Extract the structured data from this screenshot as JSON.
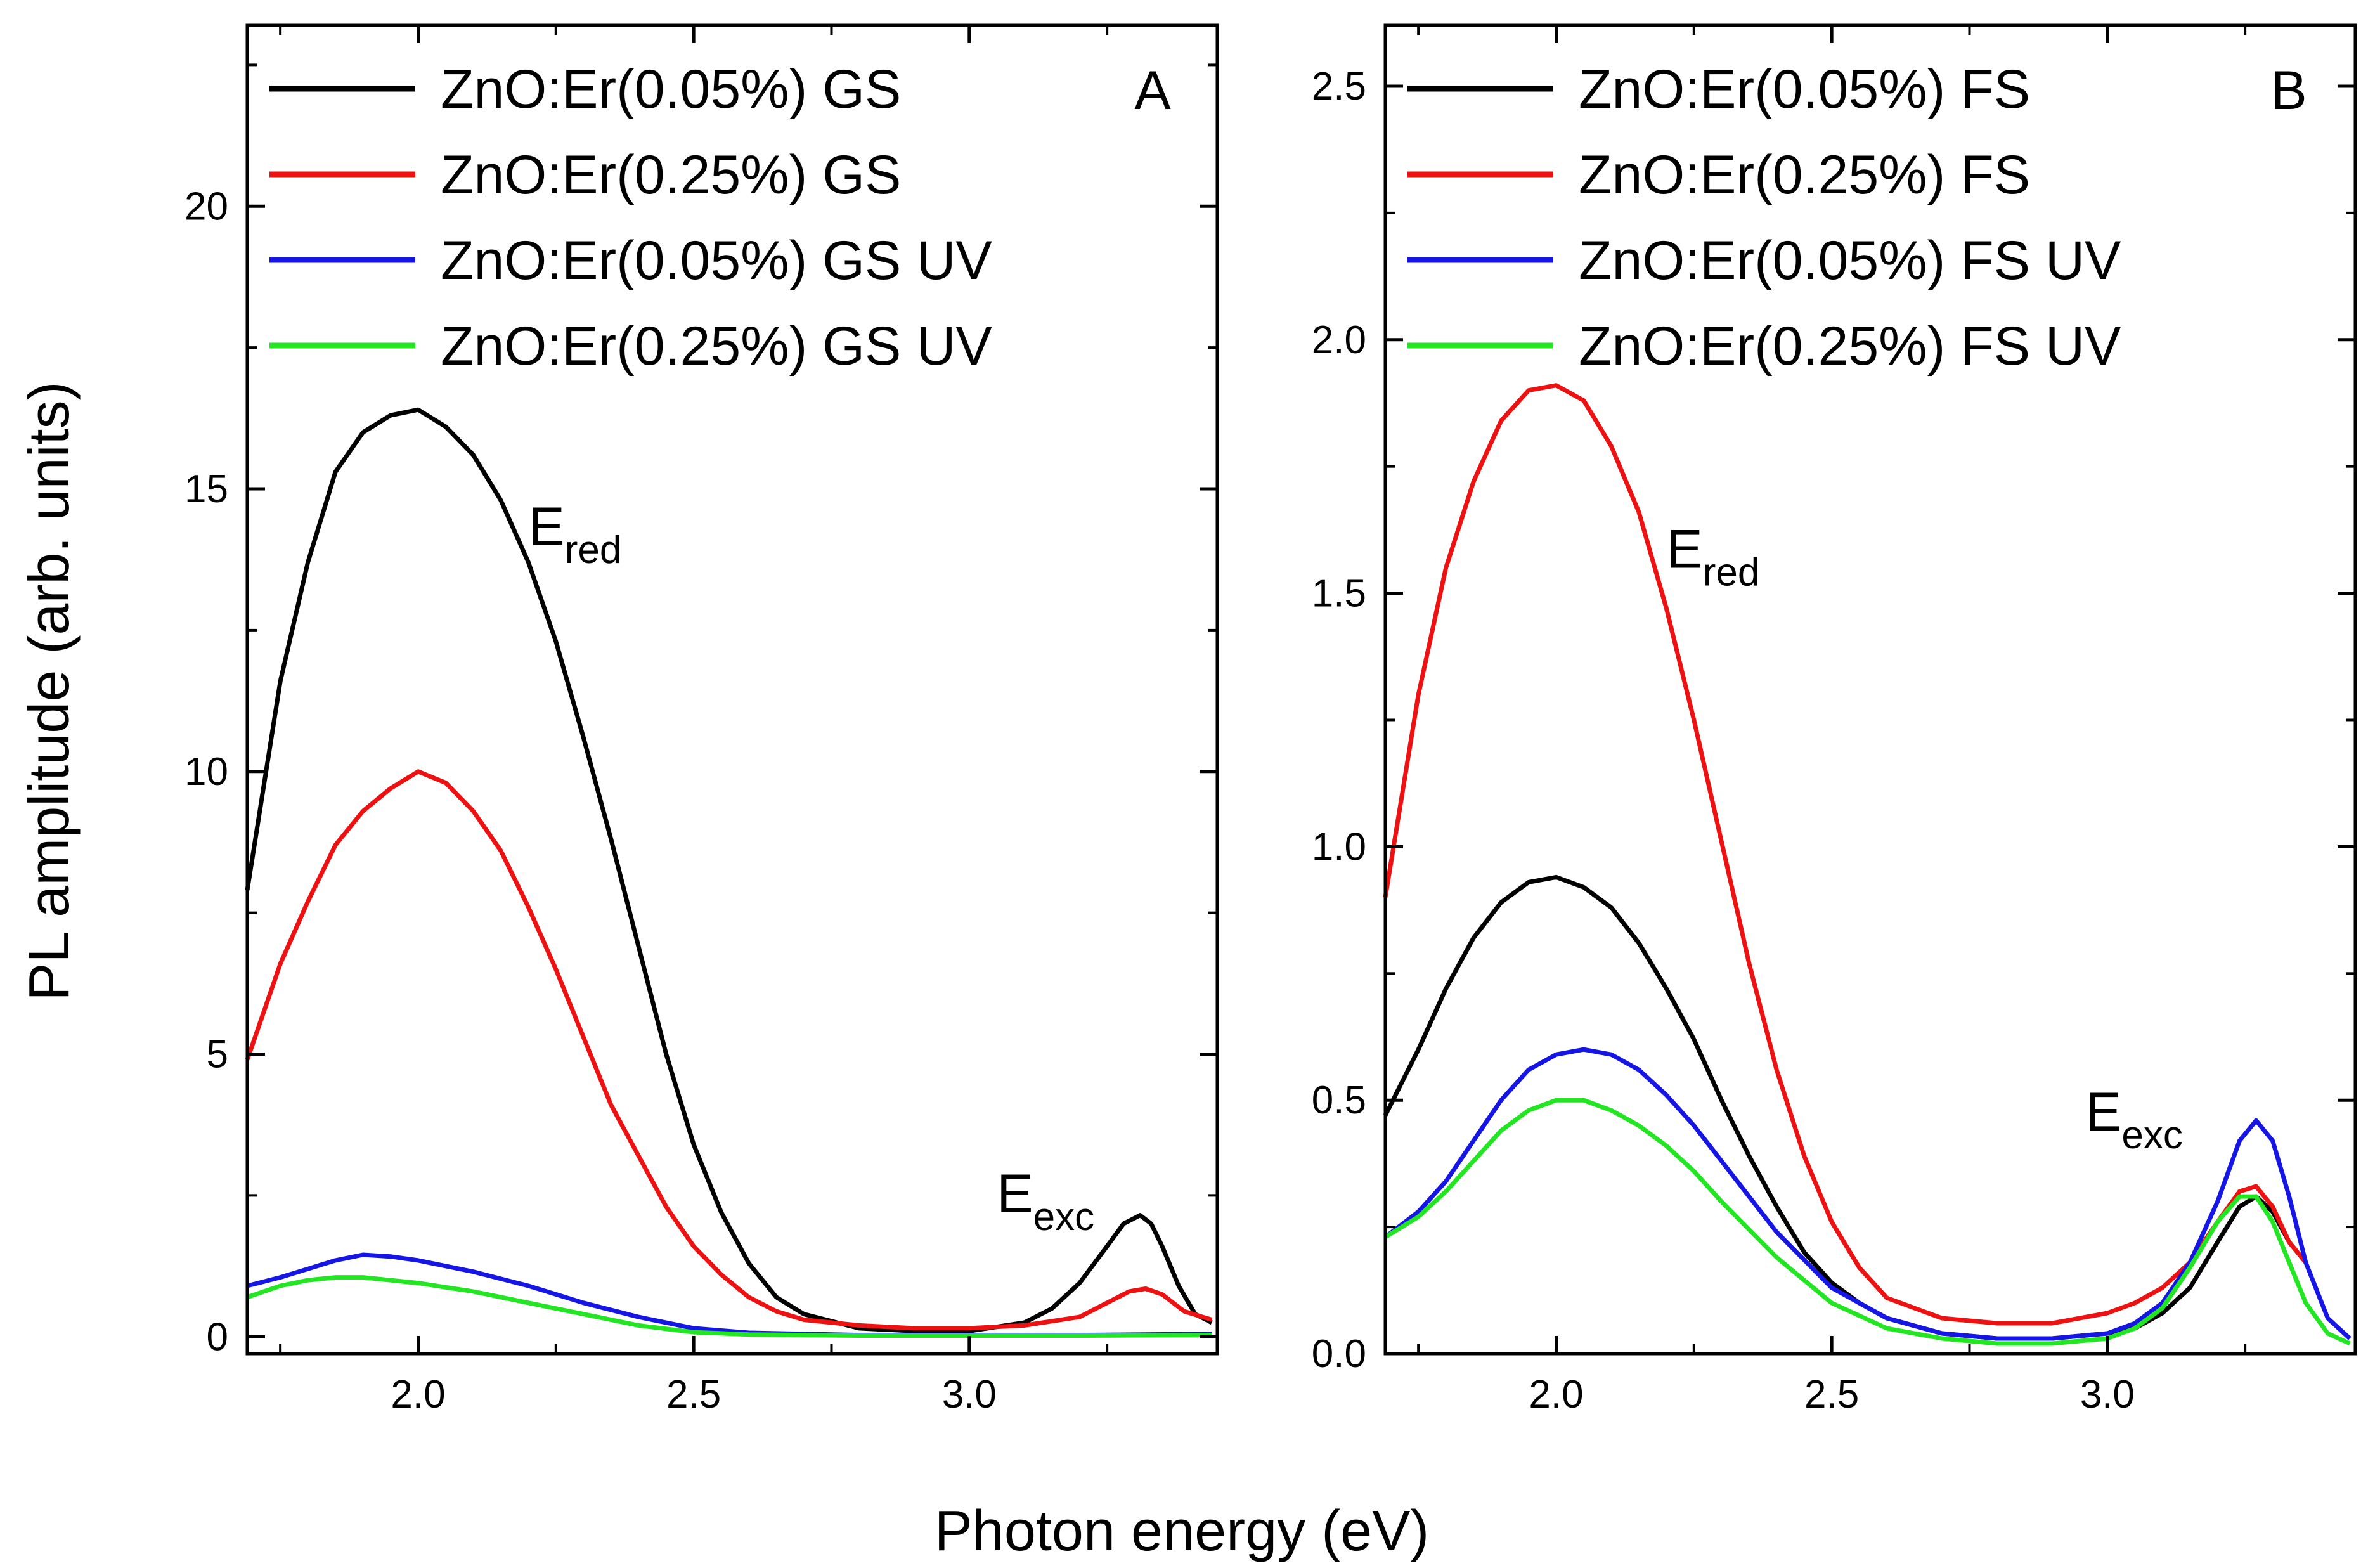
{
  "figure": {
    "x_title": "Photon energy (eV)",
    "y_title": "PL amplitude (arb. units)"
  },
  "chart_data": [
    {
      "type": "line",
      "panel": "A",
      "xlim": [
        1.69,
        3.45
      ],
      "ylim": [
        -0.3,
        23.2
      ],
      "xticks": [
        2.0,
        2.5,
        3.0
      ],
      "xtick_labels": [
        "2.0",
        "2.5",
        "3.0"
      ],
      "yticks": [
        0,
        5,
        10,
        15,
        20
      ],
      "ytick_labels": [
        "0",
        "5",
        "10",
        "15",
        "20"
      ],
      "annotations": [
        {
          "main": "E",
          "sub": "red",
          "x": 2.2,
          "y": 14.0
        },
        {
          "main": "E",
          "sub": "exc",
          "x": 3.05,
          "y": 2.2
        }
      ],
      "series": [
        {
          "name": "ZnO:Er(0.05%) GS",
          "color": "#000000",
          "x": [
            1.69,
            1.75,
            1.8,
            1.85,
            1.9,
            1.95,
            2.0,
            2.05,
            2.1,
            2.15,
            2.2,
            2.25,
            2.3,
            2.35,
            2.4,
            2.45,
            2.5,
            2.55,
            2.6,
            2.65,
            2.7,
            2.8,
            2.9,
            3.0,
            3.1,
            3.15,
            3.2,
            3.25,
            3.28,
            3.31,
            3.33,
            3.35,
            3.38,
            3.41,
            3.44
          ],
          "y": [
            7.9,
            11.6,
            13.7,
            15.3,
            16.0,
            16.3,
            16.4,
            16.1,
            15.6,
            14.8,
            13.7,
            12.3,
            10.6,
            8.8,
            6.9,
            5.0,
            3.4,
            2.2,
            1.3,
            0.7,
            0.4,
            0.15,
            0.1,
            0.1,
            0.25,
            0.5,
            0.95,
            1.6,
            2.0,
            2.15,
            2.0,
            1.6,
            0.9,
            0.4,
            0.25
          ]
        },
        {
          "name": "ZnO:Er(0.25%) GS",
          "color": "#ee1111",
          "x": [
            1.69,
            1.75,
            1.8,
            1.85,
            1.9,
            1.95,
            2.0,
            2.05,
            2.1,
            2.15,
            2.2,
            2.25,
            2.3,
            2.35,
            2.4,
            2.45,
            2.5,
            2.55,
            2.6,
            2.65,
            2.7,
            2.8,
            2.9,
            3.0,
            3.1,
            3.2,
            3.25,
            3.29,
            3.32,
            3.35,
            3.39,
            3.44
          ],
          "y": [
            4.9,
            6.6,
            7.7,
            8.7,
            9.3,
            9.7,
            10.0,
            9.8,
            9.3,
            8.6,
            7.6,
            6.5,
            5.3,
            4.1,
            3.2,
            2.3,
            1.6,
            1.1,
            0.7,
            0.45,
            0.3,
            0.2,
            0.15,
            0.15,
            0.2,
            0.35,
            0.6,
            0.8,
            0.85,
            0.75,
            0.45,
            0.3
          ]
        },
        {
          "name": "ZnO:Er(0.05%) GS UV",
          "color": "#1515e6",
          "x": [
            1.69,
            1.75,
            1.8,
            1.85,
            1.9,
            1.95,
            2.0,
            2.1,
            2.2,
            2.3,
            2.4,
            2.5,
            2.6,
            2.8,
            3.0,
            3.2,
            3.44
          ],
          "y": [
            0.9,
            1.05,
            1.2,
            1.35,
            1.45,
            1.42,
            1.35,
            1.15,
            0.9,
            0.6,
            0.35,
            0.15,
            0.07,
            0.03,
            0.03,
            0.03,
            0.05
          ]
        },
        {
          "name": "ZnO:Er(0.25%) GS UV",
          "color": "#22e622",
          "x": [
            1.69,
            1.75,
            1.8,
            1.85,
            1.9,
            1.95,
            2.0,
            2.1,
            2.2,
            2.3,
            2.4,
            2.5,
            2.6,
            2.8,
            3.0,
            3.2,
            3.44
          ],
          "y": [
            0.7,
            0.9,
            1.0,
            1.05,
            1.05,
            1.0,
            0.95,
            0.8,
            0.6,
            0.4,
            0.2,
            0.08,
            0.04,
            0.02,
            0.02,
            0.02,
            0.03
          ]
        }
      ]
    },
    {
      "type": "line",
      "panel": "B",
      "xlim": [
        1.69,
        3.45
      ],
      "ylim": [
        0.0,
        2.62
      ],
      "xticks": [
        2.0,
        2.5,
        3.0
      ],
      "xtick_labels": [
        "2.0",
        "2.5",
        "3.0"
      ],
      "yticks": [
        0.0,
        0.5,
        1.0,
        1.5,
        2.0,
        2.5
      ],
      "ytick_labels": [
        "0.0",
        "0.5",
        "1.0",
        "1.5",
        "2.0",
        "2.5"
      ],
      "annotations": [
        {
          "main": "E",
          "sub": "red",
          "x": 2.2,
          "y": 1.55
        },
        {
          "main": "E",
          "sub": "exc",
          "x": 2.96,
          "y": 0.44
        }
      ],
      "series": [
        {
          "name": "ZnO:Er(0.05%) FS",
          "color": "#000000",
          "x": [
            1.69,
            1.75,
            1.8,
            1.85,
            1.9,
            1.95,
            2.0,
            2.05,
            2.1,
            2.15,
            2.2,
            2.25,
            2.3,
            2.35,
            2.4,
            2.45,
            2.5,
            2.55,
            2.6,
            2.7,
            2.8,
            2.9,
            3.0,
            3.05,
            3.1,
            3.15,
            3.2,
            3.24,
            3.27,
            3.3,
            3.33,
            3.36
          ],
          "y": [
            0.47,
            0.6,
            0.72,
            0.82,
            0.89,
            0.93,
            0.94,
            0.92,
            0.88,
            0.81,
            0.72,
            0.62,
            0.5,
            0.39,
            0.29,
            0.2,
            0.14,
            0.1,
            0.07,
            0.04,
            0.03,
            0.03,
            0.04,
            0.05,
            0.08,
            0.13,
            0.22,
            0.29,
            0.31,
            0.28,
            0.22,
            0.18
          ]
        },
        {
          "name": "ZnO:Er(0.25%) FS",
          "color": "#ee1111",
          "x": [
            1.69,
            1.75,
            1.8,
            1.85,
            1.9,
            1.95,
            2.0,
            2.05,
            2.1,
            2.15,
            2.2,
            2.25,
            2.3,
            2.35,
            2.4,
            2.45,
            2.5,
            2.55,
            2.6,
            2.7,
            2.8,
            2.9,
            3.0,
            3.05,
            3.1,
            3.15,
            3.2,
            3.24,
            3.27,
            3.3,
            3.33,
            3.36
          ],
          "y": [
            0.9,
            1.3,
            1.55,
            1.72,
            1.84,
            1.9,
            1.91,
            1.88,
            1.79,
            1.66,
            1.47,
            1.25,
            1.01,
            0.77,
            0.56,
            0.39,
            0.26,
            0.17,
            0.11,
            0.07,
            0.06,
            0.06,
            0.08,
            0.1,
            0.13,
            0.18,
            0.26,
            0.32,
            0.33,
            0.29,
            0.22,
            0.18
          ]
        },
        {
          "name": "ZnO:Er(0.05%) FS UV",
          "color": "#1515e6",
          "x": [
            1.69,
            1.75,
            1.8,
            1.85,
            1.9,
            1.95,
            2.0,
            2.05,
            2.1,
            2.15,
            2.2,
            2.25,
            2.3,
            2.4,
            2.5,
            2.6,
            2.7,
            2.8,
            2.9,
            3.0,
            3.05,
            3.1,
            3.15,
            3.2,
            3.24,
            3.27,
            3.3,
            3.33,
            3.36,
            3.4,
            3.44
          ],
          "y": [
            0.23,
            0.28,
            0.34,
            0.42,
            0.5,
            0.56,
            0.59,
            0.6,
            0.59,
            0.56,
            0.51,
            0.45,
            0.38,
            0.24,
            0.13,
            0.07,
            0.04,
            0.03,
            0.03,
            0.04,
            0.06,
            0.1,
            0.18,
            0.3,
            0.42,
            0.46,
            0.42,
            0.31,
            0.18,
            0.07,
            0.03
          ]
        },
        {
          "name": "ZnO:Er(0.25%) FS UV",
          "color": "#22e622",
          "x": [
            1.69,
            1.75,
            1.8,
            1.85,
            1.9,
            1.95,
            2.0,
            2.05,
            2.1,
            2.15,
            2.2,
            2.25,
            2.3,
            2.4,
            2.5,
            2.6,
            2.7,
            2.8,
            2.9,
            3.0,
            3.05,
            3.1,
            3.15,
            3.2,
            3.24,
            3.27,
            3.3,
            3.33,
            3.36,
            3.4,
            3.44
          ],
          "y": [
            0.23,
            0.27,
            0.32,
            0.38,
            0.44,
            0.48,
            0.5,
            0.5,
            0.48,
            0.45,
            0.41,
            0.36,
            0.3,
            0.19,
            0.1,
            0.05,
            0.03,
            0.02,
            0.02,
            0.03,
            0.05,
            0.09,
            0.17,
            0.26,
            0.31,
            0.31,
            0.26,
            0.18,
            0.1,
            0.04,
            0.02
          ]
        }
      ]
    }
  ]
}
